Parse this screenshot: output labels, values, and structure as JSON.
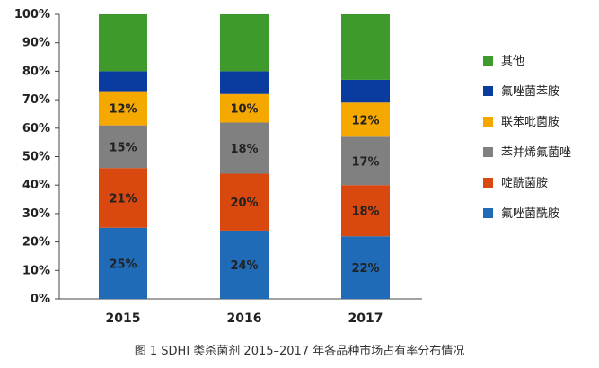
{
  "chart_data": {
    "type": "bar",
    "stacked": true,
    "percent_stacked": true,
    "categories": [
      "2015",
      "2016",
      "2017"
    ],
    "y_ticks": [
      "0%",
      "10%",
      "20%",
      "30%",
      "40%",
      "50%",
      "60%",
      "70%",
      "80%",
      "90%",
      "100%"
    ],
    "ylim": [
      0,
      100
    ],
    "grid": false,
    "legend_position": "right",
    "series": [
      {
        "name": "氟唑菌酰胺",
        "values": [
          25,
          24,
          22
        ],
        "color": "#1f6bb8",
        "labels": [
          "25%",
          "24%",
          "22%"
        ]
      },
      {
        "name": "啶酰菌胺",
        "values": [
          21,
          20,
          18
        ],
        "color": "#d9480f",
        "labels": [
          "21%",
          "20%",
          "18%"
        ]
      },
      {
        "name": "苯并烯氟菌唑",
        "values": [
          15,
          18,
          17
        ],
        "color": "#808080",
        "labels": [
          "15%",
          "18%",
          "17%"
        ]
      },
      {
        "name": "联苯吡菌胺",
        "values": [
          12,
          10,
          12
        ],
        "color": "#f5a800",
        "labels": [
          "12%",
          "10%",
          "12%"
        ]
      },
      {
        "name": "氟唑菌苯胺",
        "values": [
          7,
          8,
          8
        ],
        "color": "#0a3ca0",
        "labels": [
          "",
          "",
          ""
        ]
      },
      {
        "name": "其他",
        "values": [
          20,
          20,
          23
        ],
        "color": "#3f9a2c",
        "labels": [
          "",
          "",
          ""
        ]
      }
    ]
  },
  "caption": "图 1  SDHI 类杀菌剂 2015–2017 年各品种市场占有率分布情况"
}
